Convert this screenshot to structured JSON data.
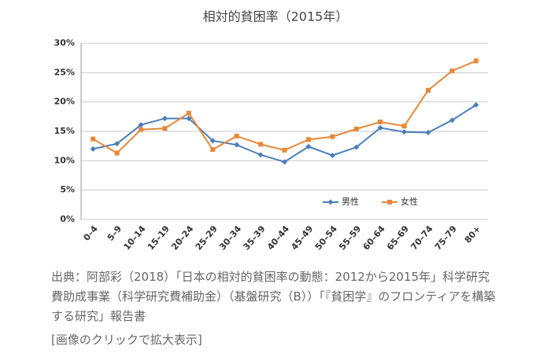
{
  "chart_data": {
    "type": "line",
    "title": "相対的貧困率（2015年）",
    "categories": [
      "0–4",
      "5–9",
      "10–14",
      "15–19",
      "20–24",
      "25–29",
      "30–34",
      "35–39",
      "40–44",
      "45–49",
      "50–54",
      "55–59",
      "60–64",
      "65–69",
      "70–74",
      "75–79",
      "80+"
    ],
    "series": [
      {
        "name": "男性",
        "color": "#4a7ebb",
        "marker": "diamond",
        "values": [
          12.0,
          12.9,
          16.1,
          17.2,
          17.2,
          13.4,
          12.7,
          11.0,
          9.8,
          12.4,
          10.9,
          12.3,
          15.6,
          14.9,
          14.8,
          16.9,
          19.5
        ]
      },
      {
        "name": "女性",
        "color": "#e8883a",
        "marker": "square",
        "values": [
          13.7,
          11.3,
          15.3,
          15.5,
          18.1,
          11.9,
          14.2,
          12.8,
          11.8,
          13.6,
          14.1,
          15.4,
          16.6,
          15.9,
          22.0,
          25.3,
          27.0
        ]
      }
    ],
    "ylim": [
      0,
      30
    ],
    "yticks": [
      {
        "value": 0,
        "label": "0%"
      },
      {
        "value": 5,
        "label": "5%"
      },
      {
        "value": 10,
        "label": "10%"
      },
      {
        "value": 15,
        "label": "15%"
      },
      {
        "value": 20,
        "label": "20%"
      },
      {
        "value": 25,
        "label": "25%"
      },
      {
        "value": 30,
        "label": "30%"
      }
    ],
    "grid": true,
    "legend": "lower right"
  },
  "caption": "出典：阿部彩（2018）「日本の相対的貧困率の動態：2012から2015年」科学研究費助成事業（科学研究費補助金）（基盤研究（B））「『貧困学』のフロンティアを構築する研究」報告書",
  "link_text": "[画像のクリックで拡大表示]"
}
